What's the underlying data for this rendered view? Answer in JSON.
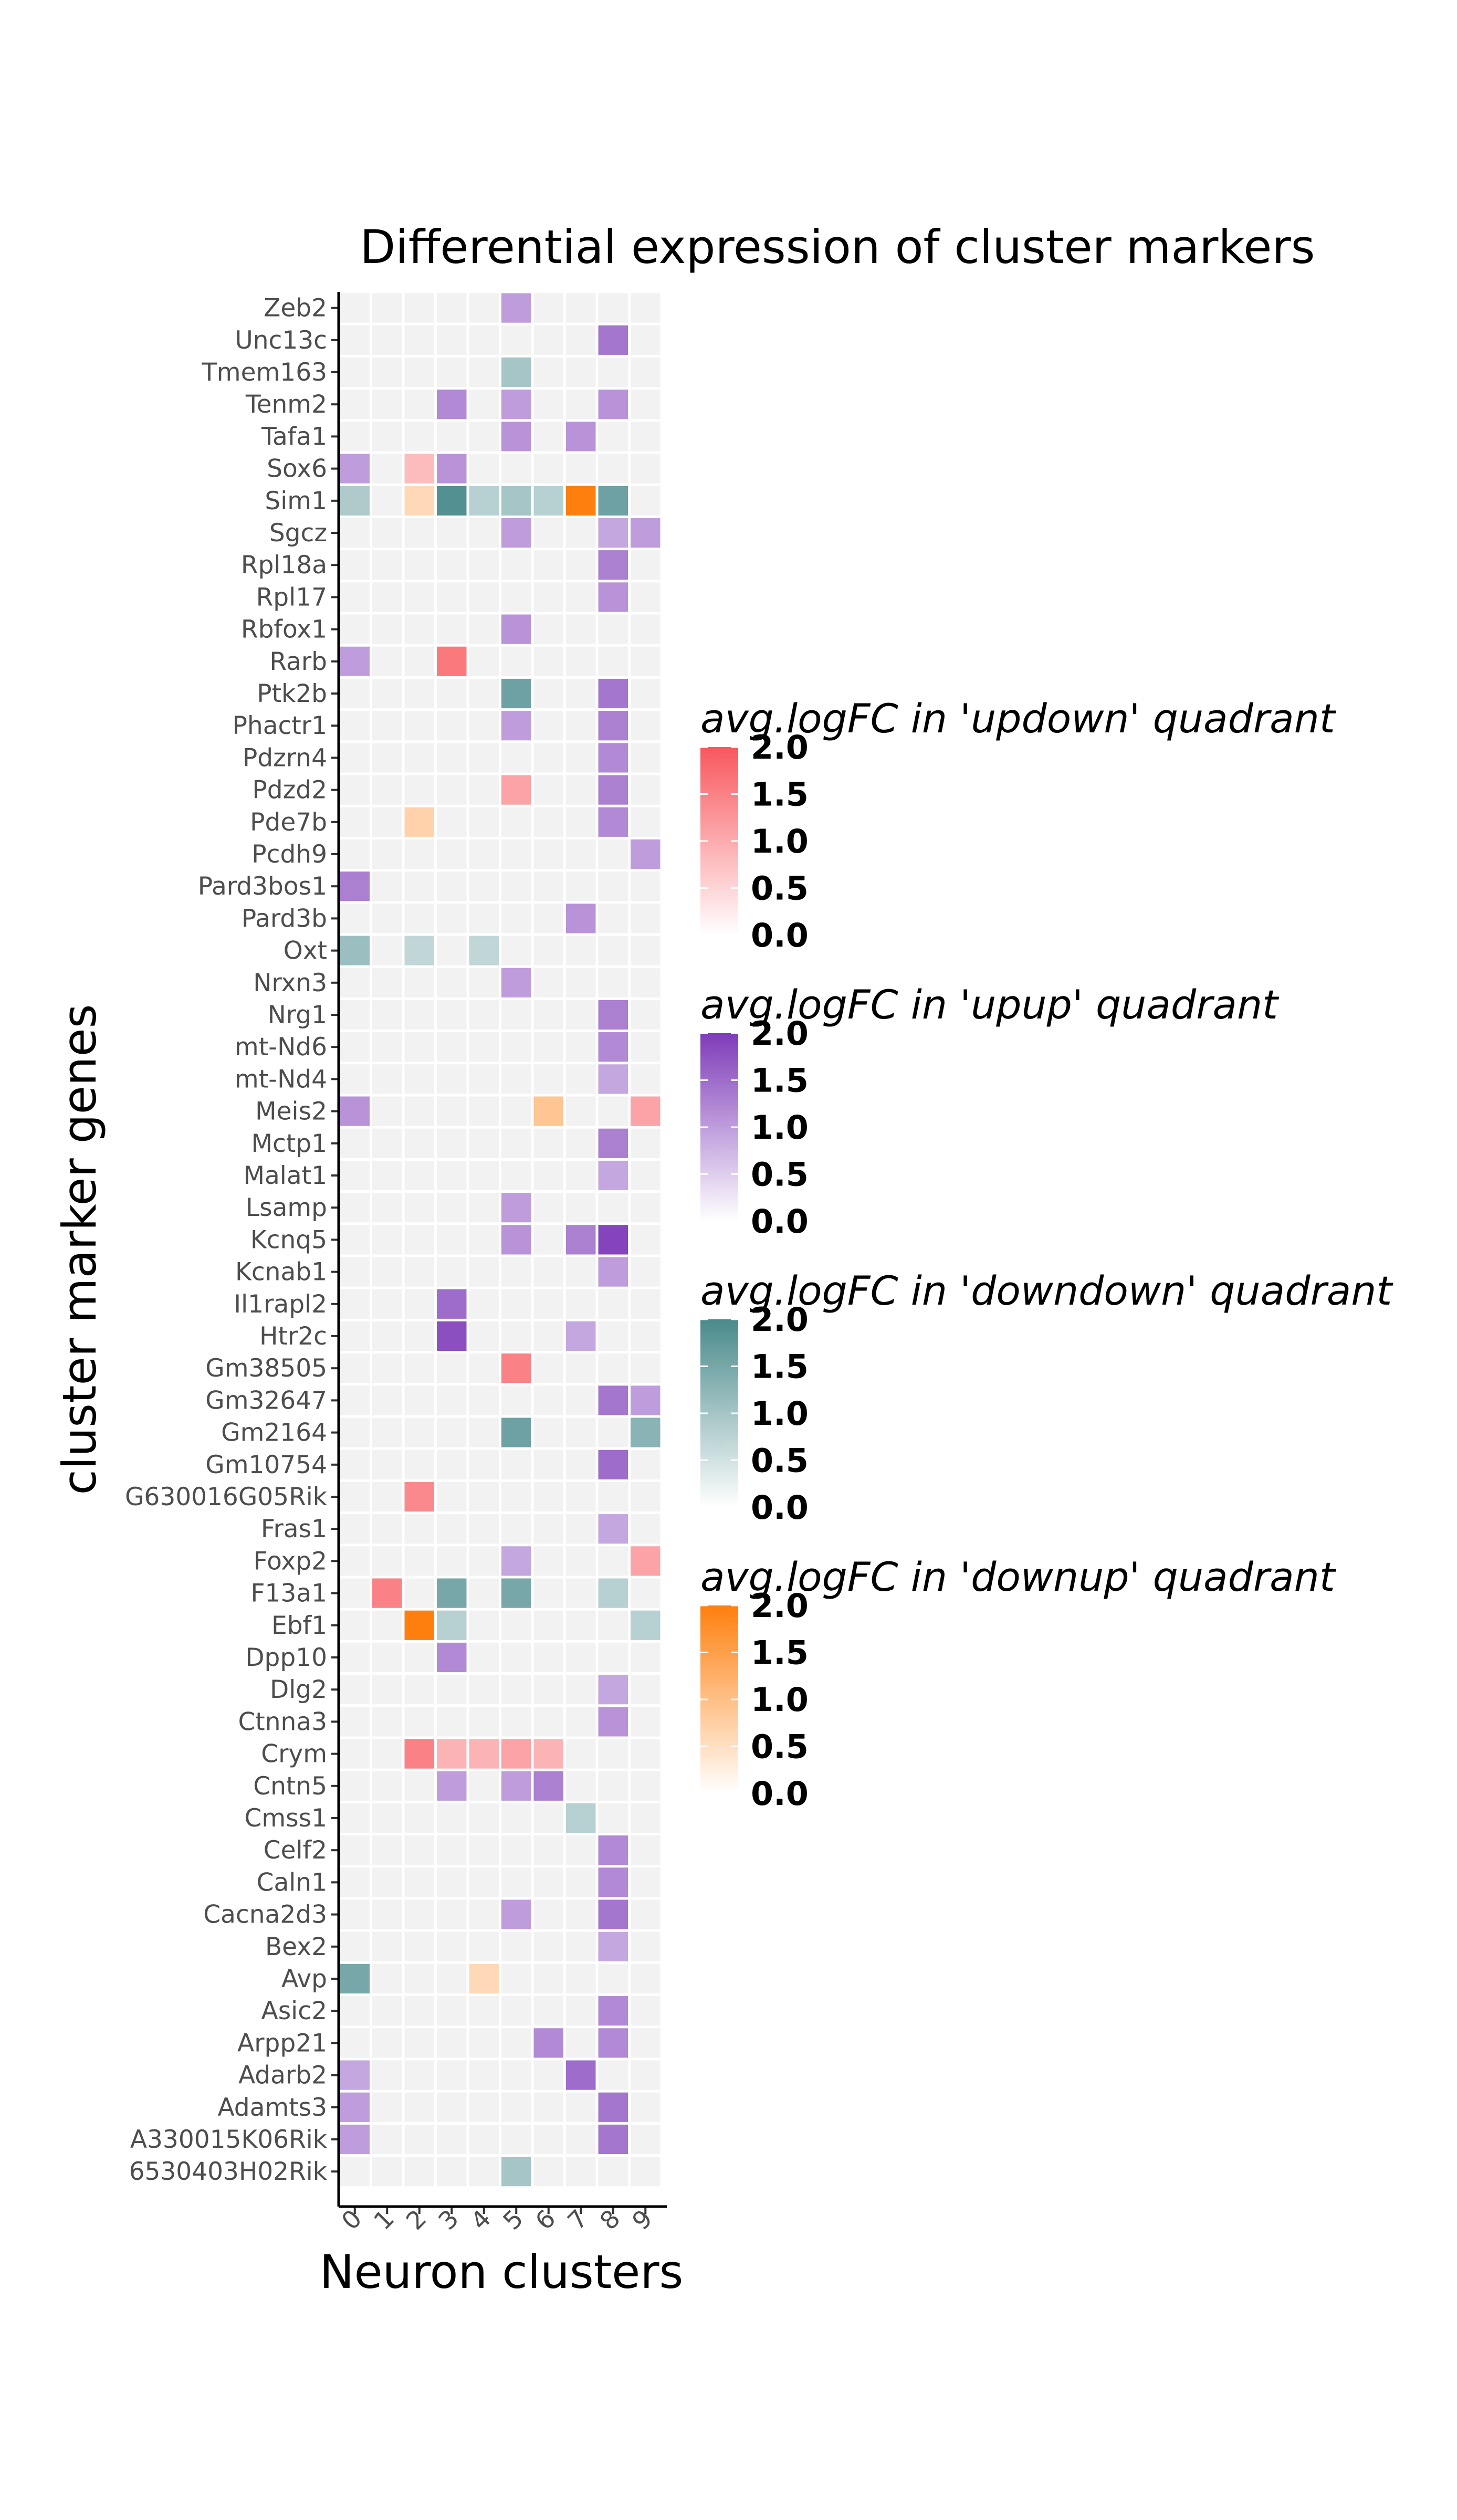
{
  "chart_data": {
    "type": "heatmap",
    "title": "Differential expression of cluster markers",
    "xlabel": "Neuron clusters",
    "ylabel": "cluster marker genes",
    "x_categories": [
      "0",
      "1",
      "2",
      "3",
      "4",
      "5",
      "6",
      "7",
      "8",
      "9"
    ],
    "genes": [
      "Zeb2",
      "Unc13c",
      "Tmem163",
      "Tenm2",
      "Tafa1",
      "Sox6",
      "Sim1",
      "Sgcz",
      "Rpl18a",
      "Rpl17",
      "Rbfox1",
      "Rarb",
      "Ptk2b",
      "Phactr1",
      "Pdzrn4",
      "Pdzd2",
      "Pde7b",
      "Pcdh9",
      "Pard3bos1",
      "Pard3b",
      "Oxt",
      "Nrxn3",
      "Nrg1",
      "mt-Nd6",
      "mt-Nd4",
      "Meis2",
      "Mctp1",
      "Malat1",
      "Lsamp",
      "Kcnq5",
      "Kcnab1",
      "Il1rapl2",
      "Htr2c",
      "Gm38505",
      "Gm32647",
      "Gm2164",
      "Gm10754",
      "G630016G05Rik",
      "Fras1",
      "Foxp2",
      "F13a1",
      "Ebf1",
      "Dpp10",
      "Dlg2",
      "Ctnna3",
      "Crym",
      "Cntn5",
      "Cmss1",
      "Celf2",
      "Caln1",
      "Cacna2d3",
      "Bex2",
      "Avp",
      "Asic2",
      "Arpp21",
      "Adarb2",
      "Adamts3",
      "A330015K06Rik",
      "6530403H02Rik"
    ],
    "cells": [
      {
        "gene": "Zeb2",
        "cluster": "5",
        "quadrant": "upup",
        "value": 1.0
      },
      {
        "gene": "Unc13c",
        "cluster": "8",
        "quadrant": "upup",
        "value": 1.4
      },
      {
        "gene": "Tmem163",
        "cluster": "5",
        "quadrant": "downdown",
        "value": 1.0
      },
      {
        "gene": "Tenm2",
        "cluster": "3",
        "quadrant": "upup",
        "value": 1.2
      },
      {
        "gene": "Tenm2",
        "cluster": "5",
        "quadrant": "upup",
        "value": 1.0
      },
      {
        "gene": "Tenm2",
        "cluster": "8",
        "quadrant": "upup",
        "value": 1.1
      },
      {
        "gene": "Tafa1",
        "cluster": "5",
        "quadrant": "upup",
        "value": 1.1
      },
      {
        "gene": "Tafa1",
        "cluster": "7",
        "quadrant": "upup",
        "value": 1.1
      },
      {
        "gene": "Sox6",
        "cluster": "0",
        "quadrant": "upup",
        "value": 1.0
      },
      {
        "gene": "Sox6",
        "cluster": "2",
        "quadrant": "updown",
        "value": 0.8
      },
      {
        "gene": "Sox6",
        "cluster": "3",
        "quadrant": "upup",
        "value": 1.1
      },
      {
        "gene": "Sim1",
        "cluster": "0",
        "quadrant": "downdown",
        "value": 0.9
      },
      {
        "gene": "Sim1",
        "cluster": "2",
        "quadrant": "downup",
        "value": 0.6
      },
      {
        "gene": "Sim1",
        "cluster": "3",
        "quadrant": "downdown",
        "value": 1.9
      },
      {
        "gene": "Sim1",
        "cluster": "4",
        "quadrant": "downdown",
        "value": 0.8
      },
      {
        "gene": "Sim1",
        "cluster": "5",
        "quadrant": "downdown",
        "value": 1.0
      },
      {
        "gene": "Sim1",
        "cluster": "6",
        "quadrant": "downdown",
        "value": 0.8
      },
      {
        "gene": "Sim1",
        "cluster": "7",
        "quadrant": "downup",
        "value": 2.0
      },
      {
        "gene": "Sim1",
        "cluster": "8",
        "quadrant": "downdown",
        "value": 1.6
      },
      {
        "gene": "Sgcz",
        "cluster": "5",
        "quadrant": "upup",
        "value": 1.0
      },
      {
        "gene": "Sgcz",
        "cluster": "8",
        "quadrant": "upup",
        "value": 0.9
      },
      {
        "gene": "Sgcz",
        "cluster": "9",
        "quadrant": "upup",
        "value": 1.0
      },
      {
        "gene": "Rpl18a",
        "cluster": "8",
        "quadrant": "upup",
        "value": 1.3
      },
      {
        "gene": "Rpl17",
        "cluster": "8",
        "quadrant": "upup",
        "value": 1.1
      },
      {
        "gene": "Rbfox1",
        "cluster": "5",
        "quadrant": "upup",
        "value": 1.1
      },
      {
        "gene": "Rarb",
        "cluster": "0",
        "quadrant": "upup",
        "value": 1.0
      },
      {
        "gene": "Rarb",
        "cluster": "3",
        "quadrant": "updown",
        "value": 1.6
      },
      {
        "gene": "Ptk2b",
        "cluster": "5",
        "quadrant": "downdown",
        "value": 1.6
      },
      {
        "gene": "Ptk2b",
        "cluster": "8",
        "quadrant": "upup",
        "value": 1.4
      },
      {
        "gene": "Phactr1",
        "cluster": "5",
        "quadrant": "upup",
        "value": 1.0
      },
      {
        "gene": "Phactr1",
        "cluster": "8",
        "quadrant": "upup",
        "value": 1.3
      },
      {
        "gene": "Pdzrn4",
        "cluster": "8",
        "quadrant": "upup",
        "value": 1.2
      },
      {
        "gene": "Pdzd2",
        "cluster": "5",
        "quadrant": "updown",
        "value": 1.1
      },
      {
        "gene": "Pdzd2",
        "cluster": "8",
        "quadrant": "upup",
        "value": 1.3
      },
      {
        "gene": "Pde7b",
        "cluster": "2",
        "quadrant": "downup",
        "value": 0.7
      },
      {
        "gene": "Pde7b",
        "cluster": "8",
        "quadrant": "upup",
        "value": 1.2
      },
      {
        "gene": "Pcdh9",
        "cluster": "9",
        "quadrant": "upup",
        "value": 1.0
      },
      {
        "gene": "Pard3bos1",
        "cluster": "0",
        "quadrant": "upup",
        "value": 1.3
      },
      {
        "gene": "Pard3b",
        "cluster": "7",
        "quadrant": "upup",
        "value": 1.1
      },
      {
        "gene": "Oxt",
        "cluster": "0",
        "quadrant": "downdown",
        "value": 1.1
      },
      {
        "gene": "Oxt",
        "cluster": "2",
        "quadrant": "downdown",
        "value": 0.7
      },
      {
        "gene": "Oxt",
        "cluster": "4",
        "quadrant": "downdown",
        "value": 0.7
      },
      {
        "gene": "Nrxn3",
        "cluster": "5",
        "quadrant": "upup",
        "value": 1.0
      },
      {
        "gene": "Nrg1",
        "cluster": "8",
        "quadrant": "upup",
        "value": 1.3
      },
      {
        "gene": "mt-Nd6",
        "cluster": "8",
        "quadrant": "upup",
        "value": 1.2
      },
      {
        "gene": "mt-Nd4",
        "cluster": "8",
        "quadrant": "upup",
        "value": 0.9
      },
      {
        "gene": "Meis2",
        "cluster": "0",
        "quadrant": "upup",
        "value": 1.1
      },
      {
        "gene": "Meis2",
        "cluster": "6",
        "quadrant": "downup",
        "value": 0.9
      },
      {
        "gene": "Meis2",
        "cluster": "9",
        "quadrant": "updown",
        "value": 1.1
      },
      {
        "gene": "Mctp1",
        "cluster": "8",
        "quadrant": "upup",
        "value": 1.3
      },
      {
        "gene": "Malat1",
        "cluster": "8",
        "quadrant": "upup",
        "value": 0.9
      },
      {
        "gene": "Lsamp",
        "cluster": "5",
        "quadrant": "upup",
        "value": 1.0
      },
      {
        "gene": "Kcnq5",
        "cluster": "5",
        "quadrant": "upup",
        "value": 1.1
      },
      {
        "gene": "Kcnq5",
        "cluster": "7",
        "quadrant": "upup",
        "value": 1.3
      },
      {
        "gene": "Kcnq5",
        "cluster": "8",
        "quadrant": "upup",
        "value": 1.9
      },
      {
        "gene": "Kcnab1",
        "cluster": "8",
        "quadrant": "upup",
        "value": 1.0
      },
      {
        "gene": "Il1rapl2",
        "cluster": "3",
        "quadrant": "upup",
        "value": 1.5
      },
      {
        "gene": "Htr2c",
        "cluster": "3",
        "quadrant": "upup",
        "value": 1.8
      },
      {
        "gene": "Htr2c",
        "cluster": "7",
        "quadrant": "upup",
        "value": 0.9
      },
      {
        "gene": "Gm38505",
        "cluster": "5",
        "quadrant": "updown",
        "value": 1.5
      },
      {
        "gene": "Gm32647",
        "cluster": "8",
        "quadrant": "upup",
        "value": 1.4
      },
      {
        "gene": "Gm32647",
        "cluster": "9",
        "quadrant": "upup",
        "value": 1.0
      },
      {
        "gene": "Gm2164",
        "cluster": "5",
        "quadrant": "downdown",
        "value": 1.6
      },
      {
        "gene": "Gm2164",
        "cluster": "9",
        "quadrant": "downdown",
        "value": 1.3
      },
      {
        "gene": "Gm10754",
        "cluster": "8",
        "quadrant": "upup",
        "value": 1.5
      },
      {
        "gene": "G630016G05Rik",
        "cluster": "2",
        "quadrant": "updown",
        "value": 1.4
      },
      {
        "gene": "Fras1",
        "cluster": "8",
        "quadrant": "upup",
        "value": 0.9
      },
      {
        "gene": "Foxp2",
        "cluster": "5",
        "quadrant": "upup",
        "value": 0.9
      },
      {
        "gene": "Foxp2",
        "cluster": "9",
        "quadrant": "updown",
        "value": 1.1
      },
      {
        "gene": "F13a1",
        "cluster": "1",
        "quadrant": "updown",
        "value": 1.5
      },
      {
        "gene": "F13a1",
        "cluster": "3",
        "quadrant": "downdown",
        "value": 1.5
      },
      {
        "gene": "F13a1",
        "cluster": "5",
        "quadrant": "downdown",
        "value": 1.5
      },
      {
        "gene": "F13a1",
        "cluster": "8",
        "quadrant": "downdown",
        "value": 0.8
      },
      {
        "gene": "Ebf1",
        "cluster": "2",
        "quadrant": "downup",
        "value": 2.0
      },
      {
        "gene": "Ebf1",
        "cluster": "3",
        "quadrant": "downdown",
        "value": 0.8
      },
      {
        "gene": "Ebf1",
        "cluster": "9",
        "quadrant": "downdown",
        "value": 0.8
      },
      {
        "gene": "Dpp10",
        "cluster": "3",
        "quadrant": "upup",
        "value": 1.2
      },
      {
        "gene": "Dlg2",
        "cluster": "8",
        "quadrant": "upup",
        "value": 0.9
      },
      {
        "gene": "Ctnna3",
        "cluster": "8",
        "quadrant": "upup",
        "value": 1.1
      },
      {
        "gene": "Crym",
        "cluster": "2",
        "quadrant": "updown",
        "value": 1.5
      },
      {
        "gene": "Crym",
        "cluster": "3",
        "quadrant": "updown",
        "value": 0.9
      },
      {
        "gene": "Crym",
        "cluster": "4",
        "quadrant": "updown",
        "value": 0.9
      },
      {
        "gene": "Crym",
        "cluster": "5",
        "quadrant": "updown",
        "value": 1.1
      },
      {
        "gene": "Crym",
        "cluster": "6",
        "quadrant": "updown",
        "value": 0.9
      },
      {
        "gene": "Cntn5",
        "cluster": "3",
        "quadrant": "upup",
        "value": 1.0
      },
      {
        "gene": "Cntn5",
        "cluster": "5",
        "quadrant": "upup",
        "value": 1.0
      },
      {
        "gene": "Cntn5",
        "cluster": "6",
        "quadrant": "upup",
        "value": 1.3
      },
      {
        "gene": "Cmss1",
        "cluster": "7",
        "quadrant": "downdown",
        "value": 0.8
      },
      {
        "gene": "Celf2",
        "cluster": "8",
        "quadrant": "upup",
        "value": 1.2
      },
      {
        "gene": "Caln1",
        "cluster": "8",
        "quadrant": "upup",
        "value": 1.2
      },
      {
        "gene": "Cacna2d3",
        "cluster": "5",
        "quadrant": "upup",
        "value": 1.0
      },
      {
        "gene": "Cacna2d3",
        "cluster": "8",
        "quadrant": "upup",
        "value": 1.4
      },
      {
        "gene": "Bex2",
        "cluster": "8",
        "quadrant": "upup",
        "value": 0.9
      },
      {
        "gene": "Avp",
        "cluster": "0",
        "quadrant": "downdown",
        "value": 1.5
      },
      {
        "gene": "Avp",
        "cluster": "4",
        "quadrant": "downup",
        "value": 0.6
      },
      {
        "gene": "Asic2",
        "cluster": "8",
        "quadrant": "upup",
        "value": 1.2
      },
      {
        "gene": "Arpp21",
        "cluster": "6",
        "quadrant": "upup",
        "value": 1.2
      },
      {
        "gene": "Arpp21",
        "cluster": "8",
        "quadrant": "upup",
        "value": 1.2
      },
      {
        "gene": "Adarb2",
        "cluster": "0",
        "quadrant": "upup",
        "value": 0.9
      },
      {
        "gene": "Adarb2",
        "cluster": "7",
        "quadrant": "upup",
        "value": 1.5
      },
      {
        "gene": "Adamts3",
        "cluster": "0",
        "quadrant": "upup",
        "value": 1.0
      },
      {
        "gene": "Adamts3",
        "cluster": "8",
        "quadrant": "upup",
        "value": 1.4
      },
      {
        "gene": "A330015K06Rik",
        "cluster": "0",
        "quadrant": "upup",
        "value": 1.0
      },
      {
        "gene": "A330015K06Rik",
        "cluster": "8",
        "quadrant": "upup",
        "value": 1.4
      },
      {
        "gene": "6530403H02Rik",
        "cluster": "5",
        "quadrant": "downdown",
        "value": 1.0
      }
    ],
    "legends": [
      {
        "key": "updown",
        "title": "avg.logFC in 'updown' quadrant",
        "color": "#f8575d",
        "ticks": [
          "2.0",
          "1.5",
          "1.0",
          "0.5",
          "0.0"
        ],
        "range": [
          0,
          2
        ]
      },
      {
        "key": "upup",
        "title": "avg.logFC in 'upup' quadrant",
        "color": "#7e3bb8",
        "ticks": [
          "2.0",
          "1.5",
          "1.0",
          "0.5",
          "0.0"
        ],
        "range": [
          0,
          2
        ]
      },
      {
        "key": "downdown",
        "title": "avg.logFC in 'downdown' quadrant",
        "color": "#4a8a8c",
        "ticks": [
          "2.0",
          "1.5",
          "1.0",
          "0.5",
          "0.0"
        ],
        "range": [
          0,
          2
        ]
      },
      {
        "key": "downup",
        "title": "avg.logFC in 'downup' quadrant",
        "color": "#ff7f0e",
        "ticks": [
          "2.0",
          "1.5",
          "1.0",
          "0.5",
          "0.0"
        ],
        "range": [
          0,
          2
        ]
      }
    ],
    "empty_cell_color": "#f2f2f2",
    "legend_placement": "right"
  }
}
